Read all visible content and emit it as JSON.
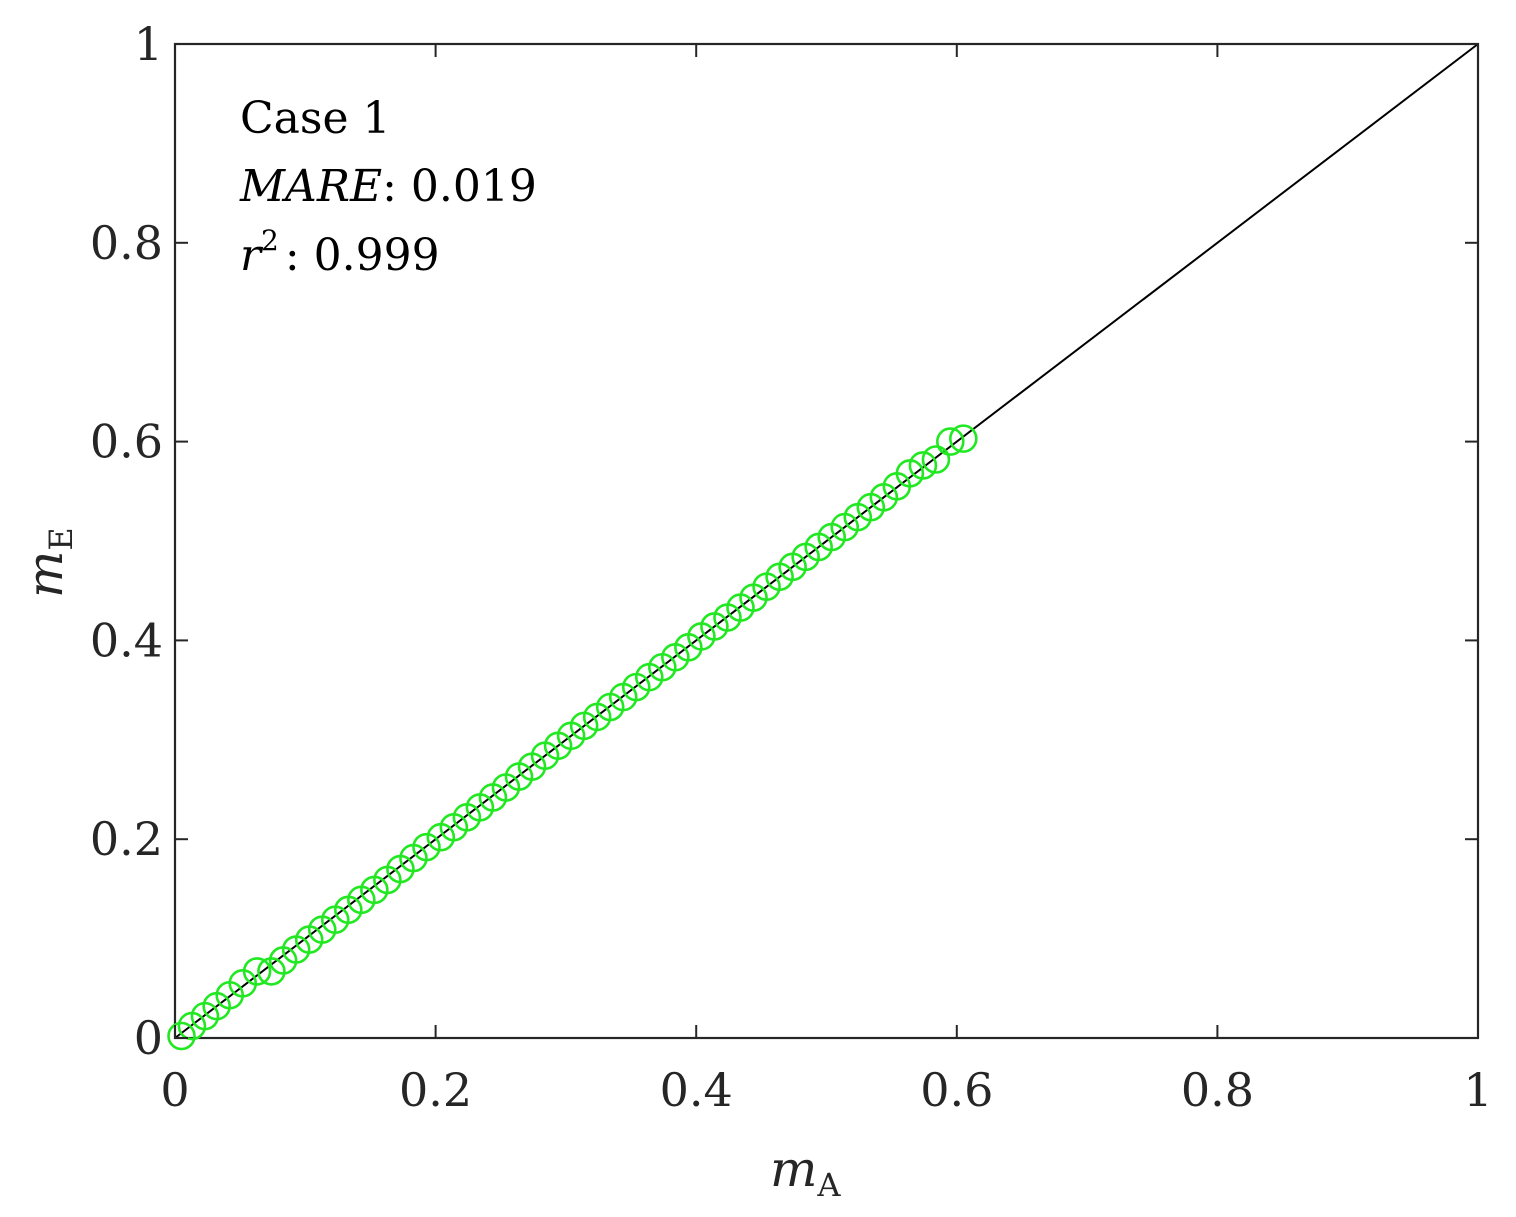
{
  "chart_data": {
    "type": "scatter",
    "xlim": [
      0,
      1
    ],
    "ylim": [
      0,
      1
    ],
    "xticks": [
      "0",
      "0.2",
      "0.4",
      "0.6",
      "0.8",
      "1"
    ],
    "yticks": [
      "0",
      "0.2",
      "0.4",
      "0.6",
      "0.8",
      "1"
    ],
    "xlabel": {
      "base": "m",
      "sub": "A"
    },
    "ylabel": {
      "base": "m",
      "sub": "E"
    },
    "annotation": {
      "line1": "Case 1",
      "metric1_name": "MARE",
      "metric1_value": ": 0.019",
      "metric2_name": "r",
      "metric2_sup": "2",
      "metric2_value": ": 0.999"
    },
    "reference_line": {
      "x": [
        0,
        1
      ],
      "y": [
        0,
        1
      ]
    },
    "grid": false,
    "colors": {
      "marker": "#22e822",
      "line": "#000000",
      "axes": "#262626"
    },
    "series": [
      {
        "marker": "open-circle",
        "x": [
          0.005,
          0.013,
          0.023,
          0.032,
          0.042,
          0.052,
          0.063,
          0.074,
          0.083,
          0.093,
          0.103,
          0.113,
          0.123,
          0.133,
          0.143,
          0.153,
          0.163,
          0.173,
          0.183,
          0.193,
          0.204,
          0.214,
          0.224,
          0.234,
          0.244,
          0.254,
          0.264,
          0.274,
          0.284,
          0.294,
          0.304,
          0.314,
          0.324,
          0.334,
          0.344,
          0.354,
          0.364,
          0.374,
          0.384,
          0.394,
          0.404,
          0.414,
          0.424,
          0.434,
          0.444,
          0.454,
          0.464,
          0.474,
          0.484,
          0.494,
          0.504,
          0.514,
          0.524,
          0.534,
          0.544,
          0.554,
          0.564,
          0.574,
          0.584,
          0.595,
          0.605
        ],
        "y": [
          0.002,
          0.012,
          0.022,
          0.032,
          0.043,
          0.055,
          0.067,
          0.067,
          0.078,
          0.089,
          0.099,
          0.109,
          0.119,
          0.129,
          0.139,
          0.149,
          0.159,
          0.17,
          0.181,
          0.192,
          0.202,
          0.212,
          0.222,
          0.232,
          0.242,
          0.252,
          0.263,
          0.273,
          0.284,
          0.294,
          0.304,
          0.314,
          0.323,
          0.333,
          0.343,
          0.353,
          0.363,
          0.373,
          0.383,
          0.393,
          0.404,
          0.414,
          0.423,
          0.433,
          0.443,
          0.454,
          0.464,
          0.474,
          0.484,
          0.494,
          0.504,
          0.514,
          0.524,
          0.534,
          0.544,
          0.555,
          0.568,
          0.576,
          0.582,
          0.6,
          0.603
        ]
      }
    ]
  }
}
